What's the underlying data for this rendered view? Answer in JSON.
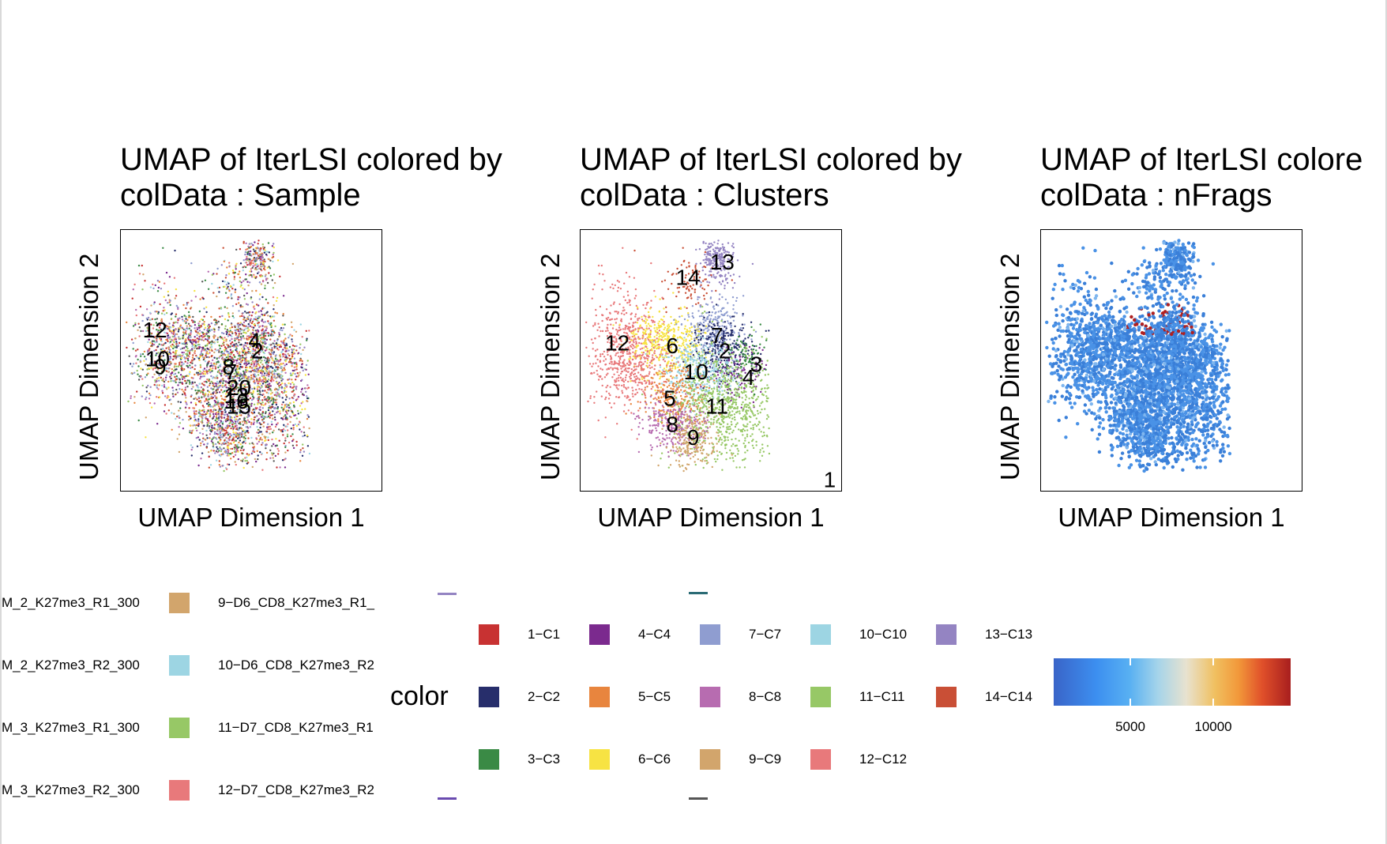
{
  "chart_data": [
    {
      "type": "scatter",
      "title_line1": "UMAP of IterLSI  colored by",
      "title_line2": "colData :  Sample",
      "xlabel": "UMAP Dimension 1",
      "ylabel": "UMAP Dimension 2",
      "cluster_labels": [
        "12",
        "10",
        "9",
        "4",
        "2",
        "8",
        "7",
        "20",
        "13",
        "16",
        "15"
      ],
      "legend_entries": [
        {
          "label": "M_2_K27me3_R1_300",
          "color": "#d2a56c"
        },
        {
          "label": "9−D6_CD8_K27me3_R1_",
          "color": ""
        },
        {
          "label": "M_2_K27me3_R2_300",
          "color": "#9dd5e3"
        },
        {
          "label": "10−D6_CD8_K27me3_R2",
          "color": ""
        },
        {
          "label": "M_3_K27me3_R1_300",
          "color": "#97c866"
        },
        {
          "label": "11−D7_CD8_K27me3_R1",
          "color": ""
        },
        {
          "label": "M_3_K27me3_R2_300",
          "color": "#e8797b"
        },
        {
          "label": "12−D7_CD8_K27me3_R2",
          "color": ""
        }
      ]
    },
    {
      "type": "scatter",
      "title_line1": "UMAP of IterLSI  colored by",
      "title_line2": "colData :  Clusters",
      "xlabel": "UMAP Dimension 1",
      "ylabel": "UMAP Dimension 2",
      "legend_title": "color",
      "cluster_labels": [
        "13",
        "14",
        "12",
        "6",
        "7",
        "2",
        "3",
        "10",
        "4",
        "5",
        "11",
        "8",
        "9",
        "1"
      ],
      "legend_entries": [
        {
          "label": "1−C1",
          "color": "#c83232"
        },
        {
          "label": "2−C2",
          "color": "#272e6b"
        },
        {
          "label": "3−C3",
          "color": "#3a8a45"
        },
        {
          "label": "4−C4",
          "color": "#7b2a8e"
        },
        {
          "label": "5−C5",
          "color": "#e8853e"
        },
        {
          "label": "6−C6",
          "color": "#f7e343"
        },
        {
          "label": "7−C7",
          "color": "#8f9dd0"
        },
        {
          "label": "8−C8",
          "color": "#b76cb0"
        },
        {
          "label": "9−C9",
          "color": "#d2a56c"
        },
        {
          "label": "10−C10",
          "color": "#9dd5e3"
        },
        {
          "label": "11−C11",
          "color": "#97c866"
        },
        {
          "label": "12−C12",
          "color": "#e8797b"
        },
        {
          "label": "13−C13",
          "color": "#9484c2"
        },
        {
          "label": "14−C14",
          "color": "#c94f36"
        }
      ]
    },
    {
      "type": "scatter",
      "title_line1": "UMAP of IterLSI  colore",
      "title_line2": "colData :  nFrags",
      "xlabel": "UMAP Dimension 1",
      "ylabel": "UMAP Dimension 2",
      "colorbar_ticks": [
        "5000",
        "10000"
      ]
    }
  ]
}
